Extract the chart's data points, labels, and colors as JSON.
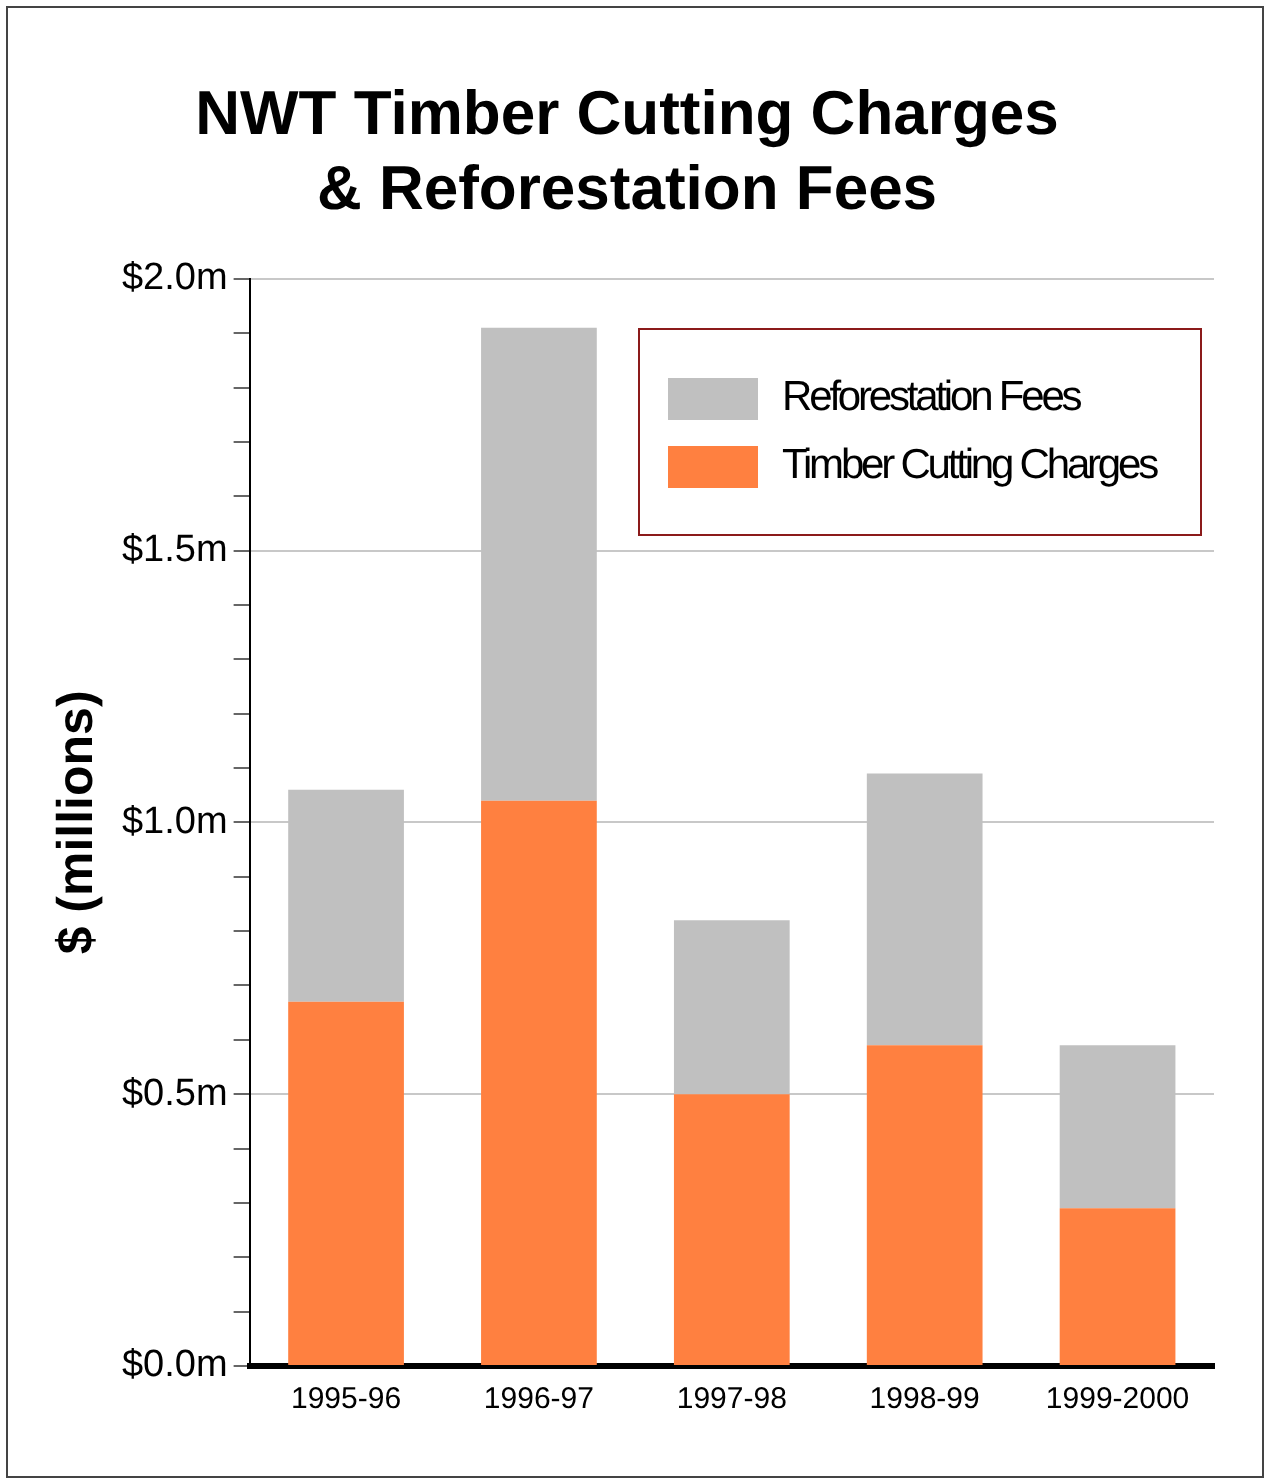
{
  "chart_data": {
    "type": "bar",
    "title": "NWT Timber Cutting Charges\n& Reforestation Fees",
    "ylabel": "$ (millions)",
    "categories": [
      "1995-96",
      "1996-97",
      "1997-98",
      "1998-99",
      "1999-2000"
    ],
    "stacked": true,
    "series": [
      {
        "name": "Timber Cutting Charges",
        "color": "#ff8040",
        "values": [
          0.67,
          1.04,
          0.5,
          0.59,
          0.29
        ]
      },
      {
        "name": "Reforestation Fees",
        "color": "#c0c0c0",
        "values": [
          0.39,
          0.87,
          0.32,
          0.5,
          0.3
        ]
      }
    ],
    "ylim": [
      0,
      2
    ],
    "yticks": [
      {
        "value": 0,
        "label": "$0.0m"
      },
      {
        "value": 0.1,
        "label": null
      },
      {
        "value": 0.2,
        "label": null
      },
      {
        "value": 0.3,
        "label": null
      },
      {
        "value": 0.4,
        "label": null
      },
      {
        "value": 0.5,
        "label": "$0.5m"
      },
      {
        "value": 0.6,
        "label": null
      },
      {
        "value": 0.7,
        "label": null
      },
      {
        "value": 0.8,
        "label": null
      },
      {
        "value": 0.9,
        "label": null
      },
      {
        "value": 1,
        "label": "$1.0m"
      },
      {
        "value": 1.1,
        "label": null
      },
      {
        "value": 1.2,
        "label": null
      },
      {
        "value": 1.3,
        "label": null
      },
      {
        "value": 1.4,
        "label": null
      },
      {
        "value": 1.5,
        "label": "$1.5m"
      },
      {
        "value": 1.6,
        "label": null
      },
      {
        "value": 1.7,
        "label": null
      },
      {
        "value": 1.8,
        "label": null
      },
      {
        "value": 1.9,
        "label": null
      },
      {
        "value": 2,
        "label": "$2.0m"
      }
    ],
    "grid": "y",
    "legend": "top right"
  }
}
